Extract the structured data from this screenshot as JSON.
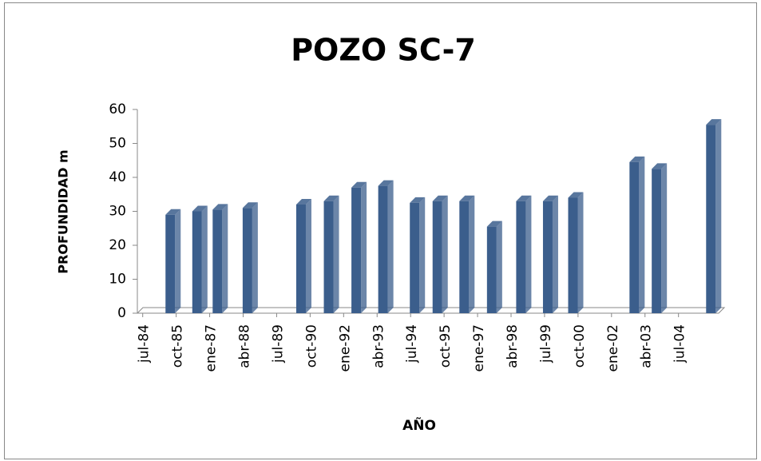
{
  "chart_data": {
    "type": "bar3d",
    "title": "POZO SC-7",
    "x_label": "AÑO",
    "y_label": "PROFUNDIDAD m",
    "color": "#3b5e8c",
    "x": [
      1985.53,
      1986.53,
      1987.29,
      1988.41,
      1990.41,
      1991.44,
      1992.47,
      1993.47,
      1994.65,
      1995.5,
      1996.5,
      1997.53,
      1998.62,
      1999.62,
      2000.56,
      2002.85,
      2003.68,
      2005.71
    ],
    "values": [
      29,
      30,
      30.5,
      31,
      32,
      33,
      37,
      37.5,
      32.5,
      33,
      33,
      25.5,
      33,
      33,
      34,
      44.5,
      42.5,
      55.5
    ],
    "xlim": [
      1984.3,
      2006
    ],
    "xticks": [
      {
        "value": 1984.5,
        "label": "jul-84"
      },
      {
        "value": 1985.75,
        "label": "oct-85"
      },
      {
        "value": 1987,
        "label": "ene-87"
      },
      {
        "value": 1988.25,
        "label": "abr-88"
      },
      {
        "value": 1989.5,
        "label": "jul-89"
      },
      {
        "value": 1990.75,
        "label": "oct-90"
      },
      {
        "value": 1992,
        "label": "ene-92"
      },
      {
        "value": 1993.25,
        "label": "abr-93"
      },
      {
        "value": 1994.5,
        "label": "jul-94"
      },
      {
        "value": 1995.75,
        "label": "oct-95"
      },
      {
        "value": 1997,
        "label": "ene-97"
      },
      {
        "value": 1998.25,
        "label": "abr-98"
      },
      {
        "value": 1999.5,
        "label": "jul-99"
      },
      {
        "value": 2000.75,
        "label": "oct-00"
      },
      {
        "value": 2002,
        "label": "ene-02"
      },
      {
        "value": 2003.25,
        "label": "abr-03"
      },
      {
        "value": 2004.5,
        "label": "jul-04"
      }
    ],
    "ylim": [
      0,
      60
    ],
    "yticks": [
      0,
      10,
      20,
      30,
      40,
      50,
      60
    ]
  }
}
